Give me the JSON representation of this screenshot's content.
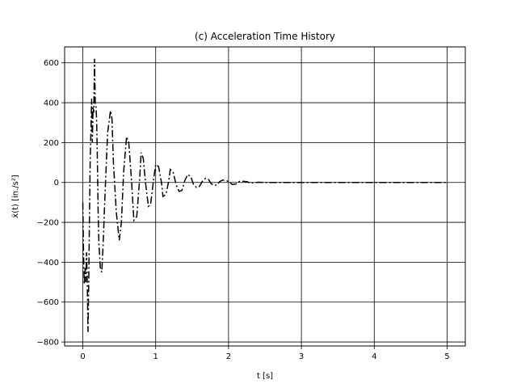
{
  "chart_data": {
    "type": "line",
    "title": "(c) Acceleration Time History",
    "xlabel": "t [s]",
    "ylabel": "ẍ(t) [in./s²]",
    "xlim": [
      -0.25,
      5.25
    ],
    "ylim": [
      -820,
      680
    ],
    "xticks": [
      0,
      1,
      2,
      3,
      4,
      5
    ],
    "xtick_labels": [
      "0",
      "1",
      "2",
      "3",
      "4",
      "5"
    ],
    "yticks": [
      -800,
      -600,
      -400,
      -200,
      0,
      200,
      400,
      600
    ],
    "ytick_labels": [
      "−800",
      "−600",
      "−400",
      "−200",
      "0",
      "200",
      "400",
      "600"
    ],
    "grid": true,
    "line_color": "#000000",
    "line_style": "dash-dot",
    "series": [
      {
        "x": [
          0.0,
          0.01,
          0.02,
          0.03,
          0.04,
          0.05,
          0.06,
          0.07,
          0.08,
          0.09,
          0.1,
          0.11,
          0.12,
          0.13,
          0.14,
          0.15,
          0.16,
          0.17,
          0.18,
          0.19,
          0.2,
          0.21,
          0.22,
          0.24,
          0.26,
          0.28,
          0.3,
          0.34,
          0.38,
          0.4,
          0.42,
          0.46,
          0.5,
          0.53,
          0.56,
          0.6,
          0.63,
          0.67,
          0.7,
          0.74,
          0.78,
          0.8,
          0.83,
          0.86,
          0.9,
          0.93,
          0.97,
          1.0,
          1.04,
          1.08,
          1.1,
          1.14,
          1.18,
          1.2,
          1.24,
          1.28,
          1.32,
          1.36,
          1.4,
          1.44,
          1.48,
          1.52,
          1.56,
          1.6,
          1.64,
          1.68,
          1.72,
          1.76,
          1.8,
          1.84,
          1.88,
          1.92,
          1.96,
          2.0,
          2.05,
          2.1,
          2.15,
          2.2,
          2.25,
          2.3,
          2.35,
          2.4,
          2.5,
          2.6,
          2.7,
          2.8,
          3.0,
          3.5,
          4.0,
          4.5,
          5.0
        ],
        "values": [
          -100,
          -350,
          -510,
          -430,
          -500,
          -350,
          -480,
          -750,
          -520,
          -200,
          100,
          250,
          420,
          200,
          380,
          350,
          620,
          400,
          390,
          300,
          100,
          -150,
          -300,
          -430,
          -450,
          -300,
          -100,
          250,
          360,
          320,
          100,
          -150,
          -290,
          -200,
          50,
          230,
          200,
          0,
          -190,
          -170,
          20,
          150,
          120,
          0,
          -120,
          -110,
          10,
          90,
          80,
          0,
          -70,
          -60,
          10,
          65,
          50,
          -10,
          -45,
          -40,
          10,
          40,
          30,
          -10,
          -25,
          -20,
          5,
          20,
          18,
          -5,
          -15,
          -12,
          5,
          12,
          10,
          5,
          -10,
          -8,
          5,
          6,
          4,
          -3,
          -2,
          1,
          0,
          0,
          0,
          0,
          0,
          0,
          0,
          0,
          0
        ]
      }
    ]
  }
}
